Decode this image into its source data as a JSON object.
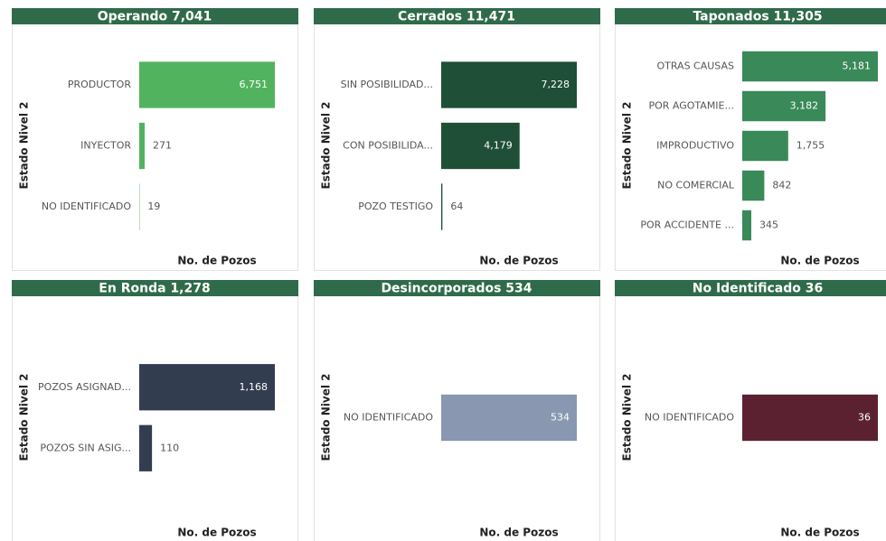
{
  "chart_data": [
    {
      "type": "bar",
      "orientation": "horizontal",
      "title": "Operando 7,041",
      "xlabel": "No. de Pozos",
      "ylabel": "Estado Nivel 2",
      "color": "#52b35f",
      "categories": [
        "PRODUCTOR",
        "INYECTOR",
        "NO IDENTIFICADO"
      ],
      "values": [
        6751,
        271,
        19
      ],
      "value_labels": [
        "6,751",
        "271",
        "19"
      ]
    },
    {
      "type": "bar",
      "orientation": "horizontal",
      "title": "Cerrados 11,471",
      "xlabel": "No. de Pozos",
      "ylabel": "Estado Nivel 2",
      "color": "#1f4f36",
      "categories": [
        "SIN POSIBILIDAD...",
        "CON POSIBILIDA...",
        "POZO TESTIGO"
      ],
      "values": [
        7228,
        4179,
        64
      ],
      "value_labels": [
        "7,228",
        "4,179",
        "64"
      ]
    },
    {
      "type": "bar",
      "orientation": "horizontal",
      "title": "Taponados 11,305",
      "xlabel": "No. de Pozos",
      "ylabel": "Estado Nivel 2",
      "color": "#3a8959",
      "categories": [
        "OTRAS CAUSAS",
        "POR AGOTAMIE...",
        "IMPRODUCTIVO",
        "NO COMERCIAL",
        "POR ACCIDENTE ..."
      ],
      "values": [
        5181,
        3182,
        1755,
        842,
        345
      ],
      "value_labels": [
        "5,181",
        "3,182",
        "1,755",
        "842",
        "345"
      ]
    },
    {
      "type": "bar",
      "orientation": "horizontal",
      "title": "En Ronda 1,278",
      "xlabel": "No. de Pozos",
      "ylabel": "Estado Nivel 2",
      "color": "#333d50",
      "categories": [
        "POZOS ASIGNAD...",
        "POZOS SIN ASIG..."
      ],
      "values": [
        1168,
        110
      ],
      "value_labels": [
        "1,168",
        "110"
      ]
    },
    {
      "type": "bar",
      "orientation": "horizontal",
      "title": "Desincorporados 534",
      "xlabel": "No. de Pozos",
      "ylabel": "Estado Nivel 2",
      "color": "#8997b0",
      "categories": [
        "NO IDENTIFICADO"
      ],
      "values": [
        534
      ]
    },
    {
      "type": "bar",
      "orientation": "horizontal",
      "title": "No Identificado 36",
      "xlabel": "No. de Pozos",
      "ylabel": "Estado Nivel 2",
      "color": "#5c2131",
      "categories": [
        "NO IDENTIFICADO"
      ],
      "values": [
        36
      ]
    }
  ]
}
